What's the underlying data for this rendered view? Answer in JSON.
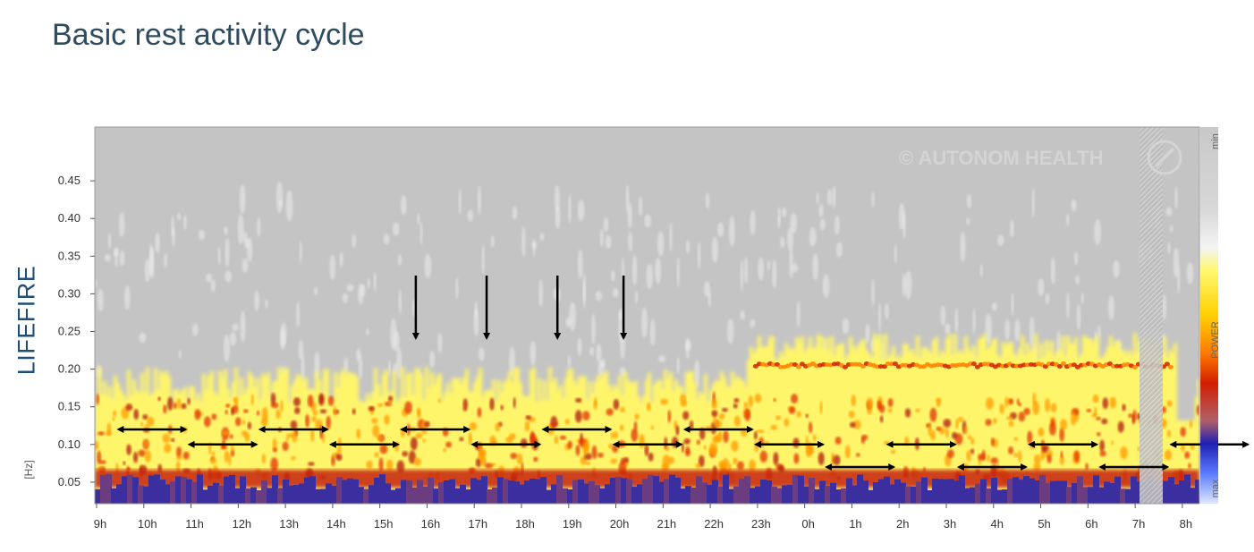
{
  "page_title": "Basic rest activity cycle",
  "watermark": "© AUTONOM HEALTH",
  "chart_data": {
    "type": "heatmap",
    "ylabel": "LIFEFIRE",
    "yunit": "[Hz]",
    "ylim": [
      0,
      0.5
    ],
    "yticks": [
      "0.05",
      "0.10",
      "0.15",
      "0.20",
      "0.25",
      "0.30",
      "0.35",
      "0.40",
      "0.45"
    ],
    "xticks": [
      "9h",
      "10h",
      "11h",
      "12h",
      "13h",
      "14h",
      "15h",
      "16h",
      "17h",
      "18h",
      "19h",
      "20h",
      "21h",
      "22h",
      "23h",
      "0h",
      "1h",
      "2h",
      "3h",
      "4h",
      "5h",
      "6h",
      "7h",
      "8h"
    ],
    "legend": {
      "label": "POWER",
      "min_label": "min",
      "max_label": "max",
      "colors": [
        "#c8c8c8",
        "#ececec",
        "#fffa30",
        "#ffb000",
        "#d11e00",
        "#7a1a40",
        "#1010c0",
        "#6b8cff",
        "#d6e2ff"
      ]
    },
    "band_intervals_hz": [
      {
        "start_h": 9.5,
        "end_h": 11.0,
        "freq": 0.12
      },
      {
        "start_h": 11.0,
        "end_h": 12.5,
        "freq": 0.1
      },
      {
        "start_h": 12.5,
        "end_h": 14.0,
        "freq": 0.12
      },
      {
        "start_h": 14.0,
        "end_h": 15.5,
        "freq": 0.1
      },
      {
        "start_h": 15.5,
        "end_h": 17.0,
        "freq": 0.12
      },
      {
        "start_h": 17.0,
        "end_h": 18.5,
        "freq": 0.1
      },
      {
        "start_h": 18.5,
        "end_h": 20.0,
        "freq": 0.12
      },
      {
        "start_h": 20.0,
        "end_h": 21.5,
        "freq": 0.1
      },
      {
        "start_h": 21.5,
        "end_h": 23.0,
        "freq": 0.12
      },
      {
        "start_h": 23.0,
        "end_h": 24.5,
        "freq": 0.1
      },
      {
        "start_h": 24.5,
        "end_h": 26.0,
        "freq": 0.07
      },
      {
        "start_h": 25.8,
        "end_h": 27.3,
        "freq": 0.1
      },
      {
        "start_h": 27.3,
        "end_h": 28.8,
        "freq": 0.07
      },
      {
        "start_h": 28.8,
        "end_h": 30.3,
        "freq": 0.1
      },
      {
        "start_h": 30.3,
        "end_h": 31.8,
        "freq": 0.07
      },
      {
        "start_h": 31.8,
        "end_h": 33.5,
        "freq": 0.1
      }
    ],
    "down_arrows_h": [
      15.8,
      17.3,
      18.8,
      20.2
    ],
    "annotation_arrows": "double-headed horizontal arrows mark ~90 minute activity cycles; vertical arrows mark cycle boundaries"
  }
}
